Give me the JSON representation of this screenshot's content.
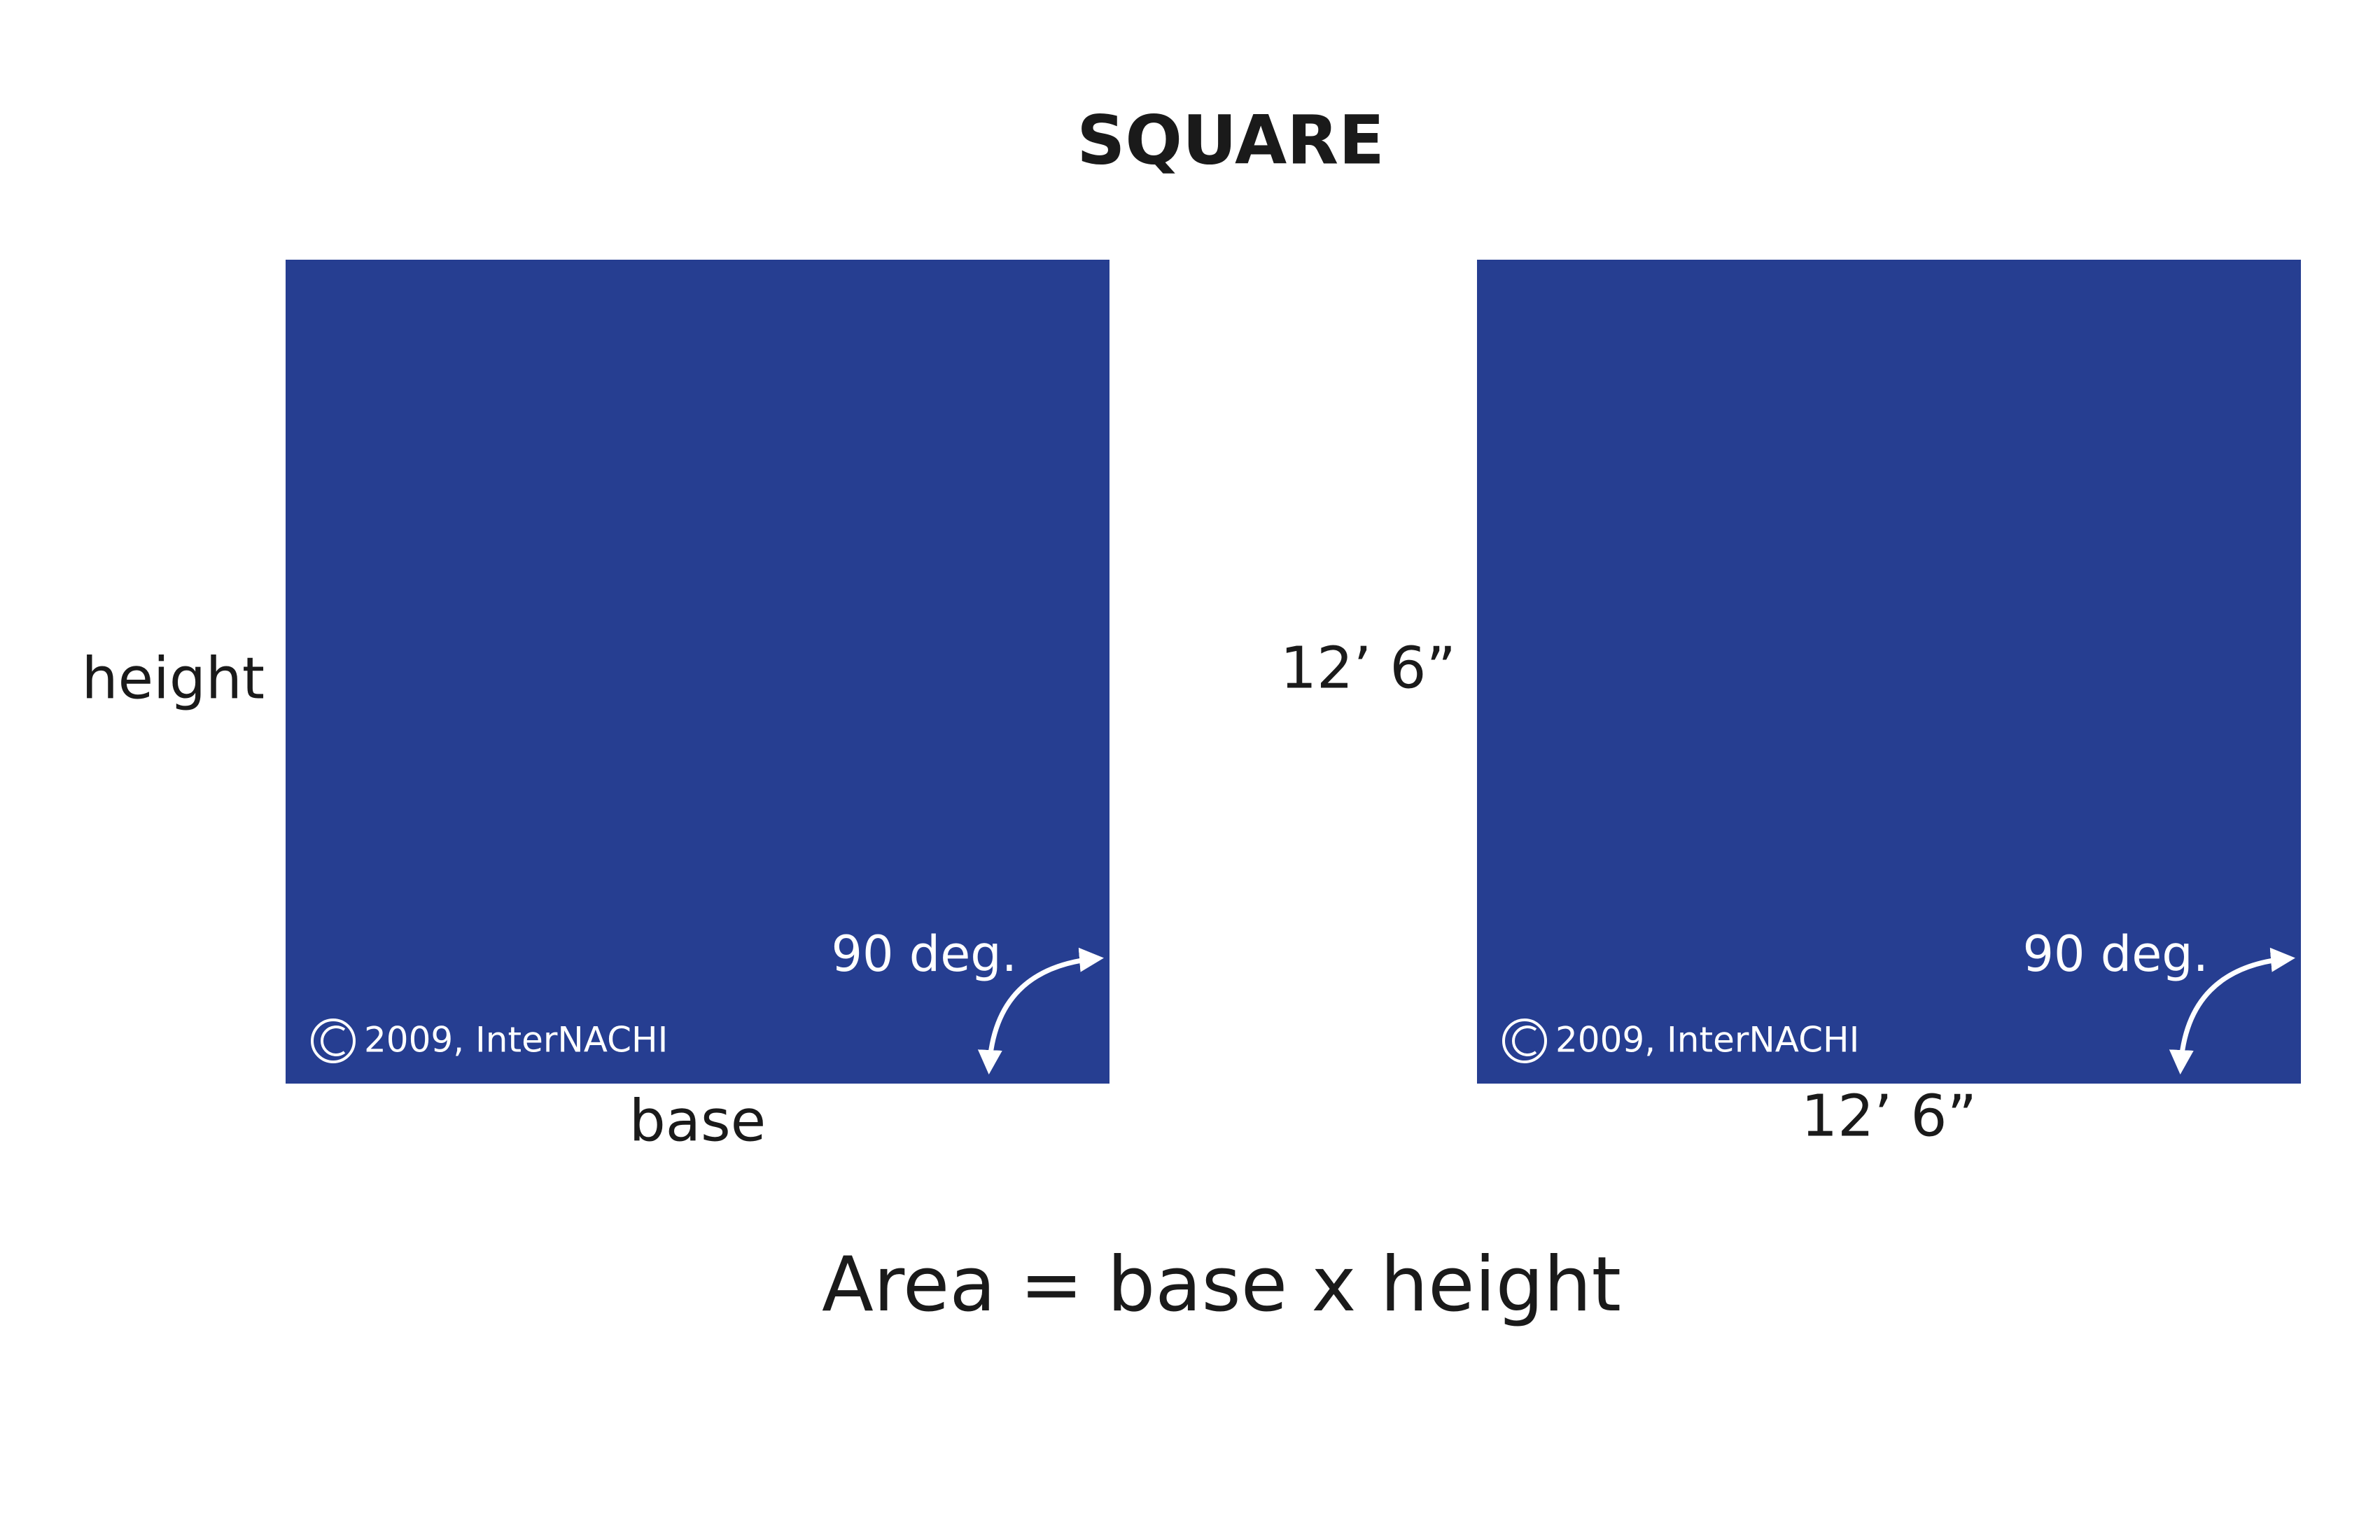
{
  "title": "SQUARE",
  "shapes": [
    {
      "height_label": "height",
      "base_label": "base",
      "angle_label": "90 deg.",
      "copyright": "2009, InterNACHI"
    },
    {
      "height_label": "12’ 6”",
      "base_label": "12’ 6”",
      "angle_label": "90 deg.",
      "copyright": "2009, InterNACHI"
    }
  ],
  "formula": "Area = base x height"
}
